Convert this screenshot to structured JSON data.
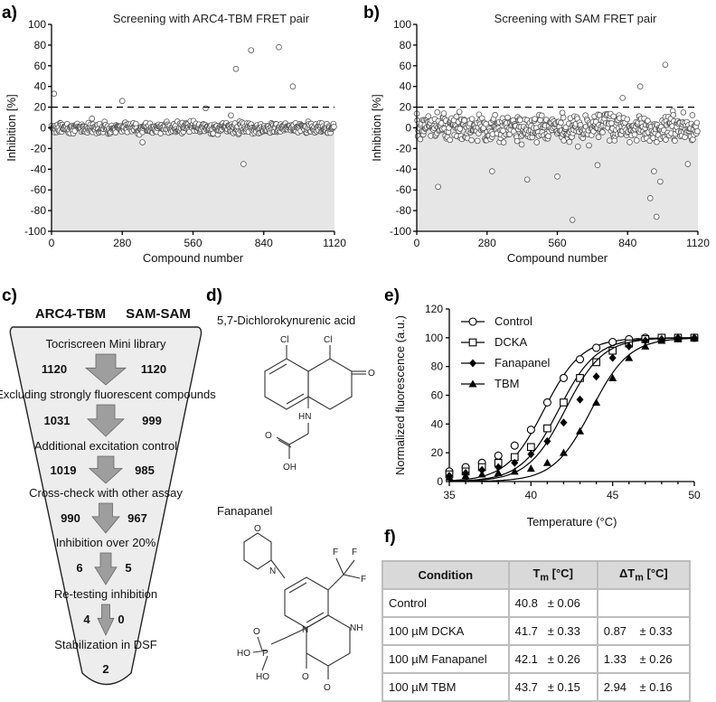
{
  "panels": {
    "a": "a)",
    "b": "b)",
    "c": "c)",
    "d": "d)",
    "e": "e)",
    "f": "f)"
  },
  "chart_data": [
    {
      "type": "scatter",
      "panel": "a",
      "title": "Screening with ARC4-TBM FRET pair",
      "xlabel": "Compound number",
      "ylabel": "Inhibition [%]",
      "xlim": [
        0,
        1120
      ],
      "ylim": [
        -100,
        100
      ],
      "xticks": [
        0,
        280,
        560,
        840,
        1120
      ],
      "yticks": [
        -100,
        -80,
        -60,
        -40,
        -20,
        0,
        20,
        40,
        60,
        80,
        100
      ],
      "threshold": 20,
      "grid": false,
      "notable_points": [
        [
          10,
          33
        ],
        [
          280,
          26
        ],
        [
          730,
          57
        ],
        [
          760,
          -35
        ],
        [
          790,
          75
        ],
        [
          900,
          78
        ],
        [
          955,
          40
        ],
        [
          160,
          9
        ],
        [
          610,
          19
        ],
        [
          360,
          -14
        ],
        [
          710,
          12
        ]
      ]
    },
    {
      "type": "scatter",
      "panel": "b",
      "title": "Screening with SAM FRET pair",
      "xlabel": "Compound number",
      "ylabel": "Inhibition [%]",
      "xlim": [
        0,
        1120
      ],
      "ylim": [
        -100,
        100
      ],
      "xticks": [
        0,
        280,
        560,
        840,
        1120
      ],
      "yticks": [
        -100,
        -80,
        -60,
        -40,
        -20,
        0,
        20,
        40,
        60,
        80,
        100
      ],
      "threshold": 20,
      "grid": false,
      "notable_points": [
        [
          85,
          -57
        ],
        [
          300,
          -42
        ],
        [
          440,
          -50
        ],
        [
          560,
          -47
        ],
        [
          620,
          -89
        ],
        [
          820,
          29
        ],
        [
          890,
          40
        ],
        [
          990,
          61
        ],
        [
          970,
          -52
        ],
        [
          930,
          -68
        ],
        [
          955,
          -86
        ],
        [
          945,
          -42
        ],
        [
          1080,
          -35
        ],
        [
          720,
          -36
        ]
      ]
    },
    {
      "type": "line",
      "panel": "e",
      "xlabel": "Temperature (°C)",
      "ylabel": "Normalized fluorescence (a.u.)",
      "xlim": [
        35,
        50
      ],
      "ylim": [
        0,
        120
      ],
      "xticks": [
        35,
        40,
        45,
        50
      ],
      "yticks": [
        0,
        20,
        40,
        60,
        80,
        100,
        120
      ],
      "legend_position": "top-left",
      "x": [
        35,
        36,
        37,
        38,
        39,
        40,
        41,
        42,
        43,
        44,
        45,
        46,
        47,
        48,
        49,
        50
      ],
      "series": [
        {
          "name": "Control",
          "marker": "open-circle",
          "tm": 40.8,
          "values": [
            7,
            10,
            13,
            18,
            25,
            36,
            55,
            72,
            85,
            93,
            97,
            99,
            100,
            100,
            100,
            100
          ]
        },
        {
          "name": "DCKA",
          "marker": "open-square",
          "tm": 41.7,
          "values": [
            5,
            7,
            10,
            13,
            17,
            24,
            37,
            55,
            72,
            83,
            91,
            96,
            99,
            100,
            100,
            100
          ]
        },
        {
          "name": "Fanapanel",
          "marker": "filled-diamond",
          "tm": 42.1,
          "values": [
            4,
            6,
            8,
            10,
            13,
            19,
            28,
            41,
            57,
            73,
            86,
            94,
            98,
            99,
            100,
            100
          ]
        },
        {
          "name": "TBM",
          "marker": "filled-triangle",
          "tm": 43.7,
          "values": [
            3,
            4,
            5,
            6,
            7,
            9,
            13,
            20,
            35,
            55,
            72,
            86,
            94,
            98,
            99,
            100
          ]
        }
      ]
    }
  ],
  "funnel": {
    "col_left": "ARC4-TBM",
    "col_right": "SAM-SAM",
    "steps": [
      {
        "label": "Tocriscreen Mini library",
        "left": "1120",
        "right": "1120"
      },
      {
        "label": "Excluding strongly fluorescent compounds",
        "left": "1031",
        "right": "999"
      },
      {
        "label": "Additional excitation control",
        "left": "1019",
        "right": "985"
      },
      {
        "label": "Cross-check with other assay",
        "left": "990",
        "right": "967"
      },
      {
        "label": "Inhibition over 20%",
        "left": "6",
        "right": "5"
      },
      {
        "label": "Re-testing inhibition",
        "left": "4",
        "right": "0"
      },
      {
        "label": "Stabilization in DSF",
        "left": "2",
        "right": ""
      }
    ]
  },
  "molecules": {
    "m1": {
      "name": "5,7-Dichlorokynurenic acid",
      "atoms": {
        "cl1": "Cl",
        "cl2": "Cl",
        "o1": "O",
        "nh": "HN",
        "o2": "O",
        "oh": "OH"
      }
    },
    "m2": {
      "name": "Fanapanel",
      "atoms": {
        "o_morph": "O",
        "n_morph": "N",
        "cf3_f1": "F",
        "cf3_f2": "F",
        "cf3_f3": "F",
        "n1": "N",
        "nh": "NH",
        "o1": "O",
        "o2": "O",
        "p": "P",
        "po1": "O",
        "ho1": "HO",
        "ho2": "HO"
      }
    }
  },
  "table": {
    "headers": [
      "Condition",
      "T",
      "m",
      "[°C]",
      "ΔT",
      "m",
      "[°C]"
    ],
    "rows": [
      {
        "condition": "Control",
        "tm": "40.8",
        "tm_err": "± 0.06",
        "dtm": "",
        "dtm_err": ""
      },
      {
        "condition": "100 µM DCKA",
        "tm": "41.7",
        "tm_err": "± 0.33",
        "dtm": "0.87",
        "dtm_err": "± 0.33"
      },
      {
        "condition": "100 µM Fanapanel",
        "tm": "42.1",
        "tm_err": "± 0.26",
        "dtm": "1.33",
        "dtm_err": "± 0.26"
      },
      {
        "condition": "100 µM TBM",
        "tm": "43.7",
        "tm_err": "± 0.15",
        "dtm": "2.94",
        "dtm_err": "± 0.16"
      }
    ]
  }
}
